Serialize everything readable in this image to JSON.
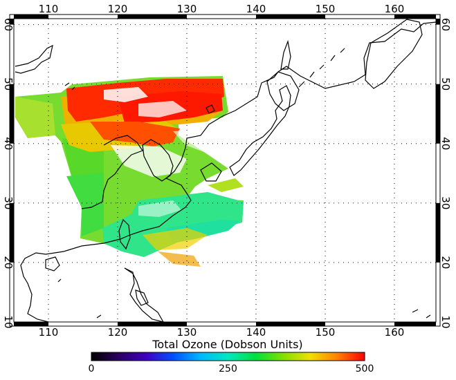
{
  "map": {
    "lon_range": [
      105,
      166
    ],
    "lat_range": [
      10,
      61
    ],
    "lon_ticks": [
      {
        "value": 110,
        "label": "110"
      },
      {
        "value": 120,
        "label": "120"
      },
      {
        "value": 130,
        "label": "130"
      },
      {
        "value": 140,
        "label": "140"
      },
      {
        "value": 150,
        "label": "150"
      },
      {
        "value": 160,
        "label": "160"
      }
    ],
    "lat_ticks": [
      {
        "value": 10,
        "label": "10"
      },
      {
        "value": 20,
        "label": "20"
      },
      {
        "value": 30,
        "label": "30"
      },
      {
        "value": 40,
        "label": "40"
      },
      {
        "value": 50,
        "label": "50"
      },
      {
        "value": 60,
        "label": "60"
      }
    ],
    "grid": true
  },
  "colorbar": {
    "title": "Total Ozone (Dobson Units)",
    "min": 0,
    "max": 500,
    "labels": [
      {
        "value": 0,
        "label": "0"
      },
      {
        "value": 250,
        "label": "250"
      },
      {
        "value": 500,
        "label": "500"
      }
    ],
    "stops": [
      "#000000",
      "#2a0060",
      "#4000c0",
      "#0050ff",
      "#00b8ff",
      "#00e8c0",
      "#00e040",
      "#80e000",
      "#f0e000",
      "#ff8000",
      "#ff0000"
    ]
  },
  "colors": {
    "low_ozone": "#30e070",
    "mid_ozone": "#a0e020",
    "high_ozone": "#ff6000",
    "very_high_ozone": "#ff1000"
  }
}
